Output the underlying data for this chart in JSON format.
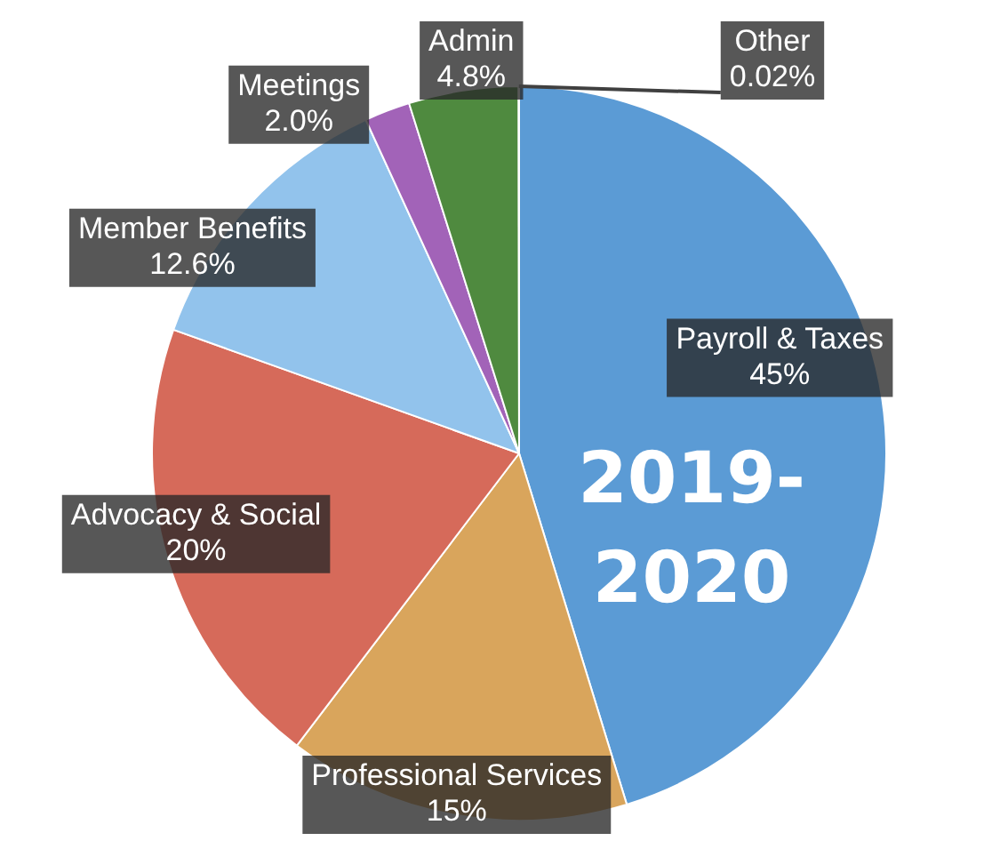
{
  "chart_data": {
    "type": "pie",
    "title": "2019-2020",
    "categories": [
      "Payroll & Taxes",
      "Professional Services",
      "Advocacy & Social",
      "Member Benefits",
      "Meetings",
      "Admin",
      "Other"
    ],
    "values": [
      45,
      15,
      20,
      12.6,
      2.0,
      4.8,
      0.02
    ],
    "value_labels": [
      "45%",
      "15%",
      "20%",
      "12.6%",
      "2.0%",
      "4.8%",
      "0.02%"
    ],
    "colors": [
      "#5b9bd5",
      "#d9a55c",
      "#d66a5a",
      "#92c3ec",
      "#a263b8",
      "#4f8a3f",
      "#404040"
    ],
    "legend": false
  }
}
